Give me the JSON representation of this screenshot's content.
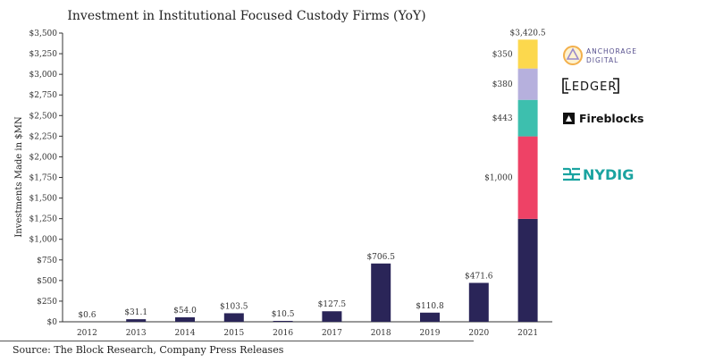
{
  "chart_data": {
    "type": "bar",
    "title": "Investment in Institutional Focused Custody Firms (YoY)",
    "xlabel": "",
    "ylabel": "Investments Made in $MN",
    "ylim": [
      0,
      3500
    ],
    "yticks": [
      0,
      250,
      500,
      750,
      1000,
      1250,
      1500,
      1750,
      2000,
      2250,
      2500,
      2750,
      3000,
      3250,
      3500
    ],
    "ytick_labels": [
      "$0",
      "$250",
      "$500",
      "$750",
      "$1,000",
      "$1,250",
      "$1,500",
      "$1,750",
      "$2,000",
      "$2,250",
      "$2,500",
      "$2,750",
      "$3,000",
      "$3,250",
      "$3,500"
    ],
    "grid": false,
    "categories": [
      "2012",
      "2013",
      "2014",
      "2015",
      "2016",
      "2017",
      "2018",
      "2019",
      "2020",
      "2021"
    ],
    "values": [
      0.6,
      31.1,
      54.0,
      103.5,
      10.5,
      127.5,
      706.5,
      110.8,
      471.6,
      3420.5
    ],
    "value_labels": [
      "$0.6",
      "$31.1",
      "$54.0",
      "$103.5",
      "$10.5",
      "$127.5",
      "$706.5",
      "$110.8",
      "$471.6",
      "$3,420.5"
    ],
    "bar_color": "#2a2558",
    "stacked_2021": [
      {
        "name": "NYDIG",
        "value": 1000,
        "label": "$1,000",
        "color": "#ee4266"
      },
      {
        "name": "Fireblocks",
        "value": 443,
        "label": "$443",
        "color": "#3dbfae"
      },
      {
        "name": "LEDGER",
        "value": 380,
        "label": "$380",
        "color": "#b6b0dd"
      },
      {
        "name": "ANCHORAGE DIGITAL",
        "value": 350,
        "label": "$350",
        "color": "#fcd84d"
      }
    ],
    "legend": "right"
  },
  "logos": [
    {
      "name": "anchorage-digital-logo",
      "lines": [
        "ANCHORAGE",
        "DIGITAL"
      ]
    },
    {
      "name": "ledger-logo",
      "text": "LEDGER"
    },
    {
      "name": "fireblocks-logo",
      "text": "Fireblocks"
    },
    {
      "name": "nydig-logo",
      "text": "NYDIG"
    }
  ],
  "source": "Source: The Block Research, Company Press Releases"
}
